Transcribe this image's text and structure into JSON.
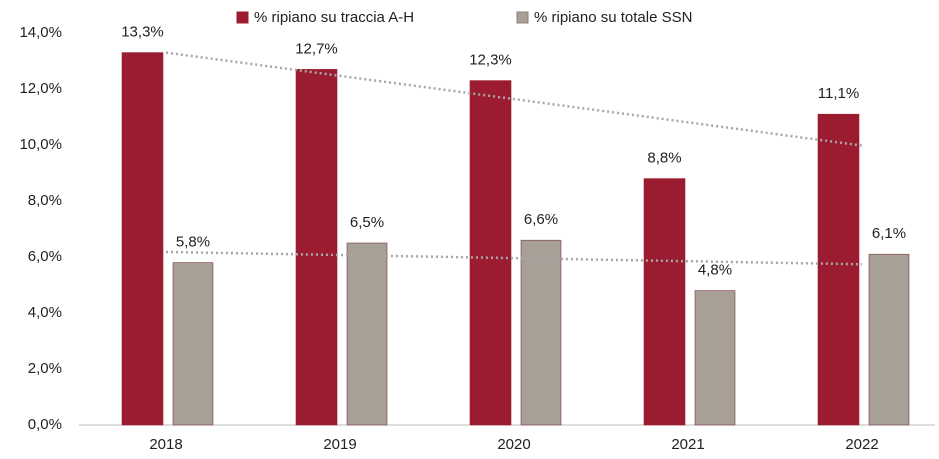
{
  "chart_data": {
    "type": "bar",
    "categories": [
      "2018",
      "2019",
      "2020",
      "2021",
      "2022"
    ],
    "series": [
      {
        "name": "% ripiano su traccia A-H",
        "color": "#9b1c31",
        "values": [
          13.3,
          12.7,
          12.3,
          8.8,
          11.1
        ],
        "value_labels": [
          "13,3%",
          "12,7%",
          "12,3%",
          "8,8%",
          "11,1%"
        ]
      },
      {
        "name": "% ripiano su totale SSN",
        "color": "#a89f97",
        "values": [
          5.8,
          6.5,
          6.6,
          4.8,
          6.1
        ],
        "value_labels": [
          "5,8%",
          "6,5%",
          "6,6%",
          "4,8%",
          "6,1%"
        ]
      }
    ],
    "ylim": [
      0,
      14
    ],
    "yticks": [
      {
        "value": 0,
        "label": "0,0%"
      },
      {
        "value": 2,
        "label": "2,0%"
      },
      {
        "value": 4,
        "label": "4,0%"
      },
      {
        "value": 6,
        "label": "6,0%"
      },
      {
        "value": 8,
        "label": "8,0%"
      },
      {
        "value": 10,
        "label": "10,0%"
      },
      {
        "value": 12,
        "label": "12,0%"
      },
      {
        "value": 14,
        "label": "14,0%"
      }
    ],
    "grid": false,
    "trendline": true,
    "legend": "top"
  }
}
